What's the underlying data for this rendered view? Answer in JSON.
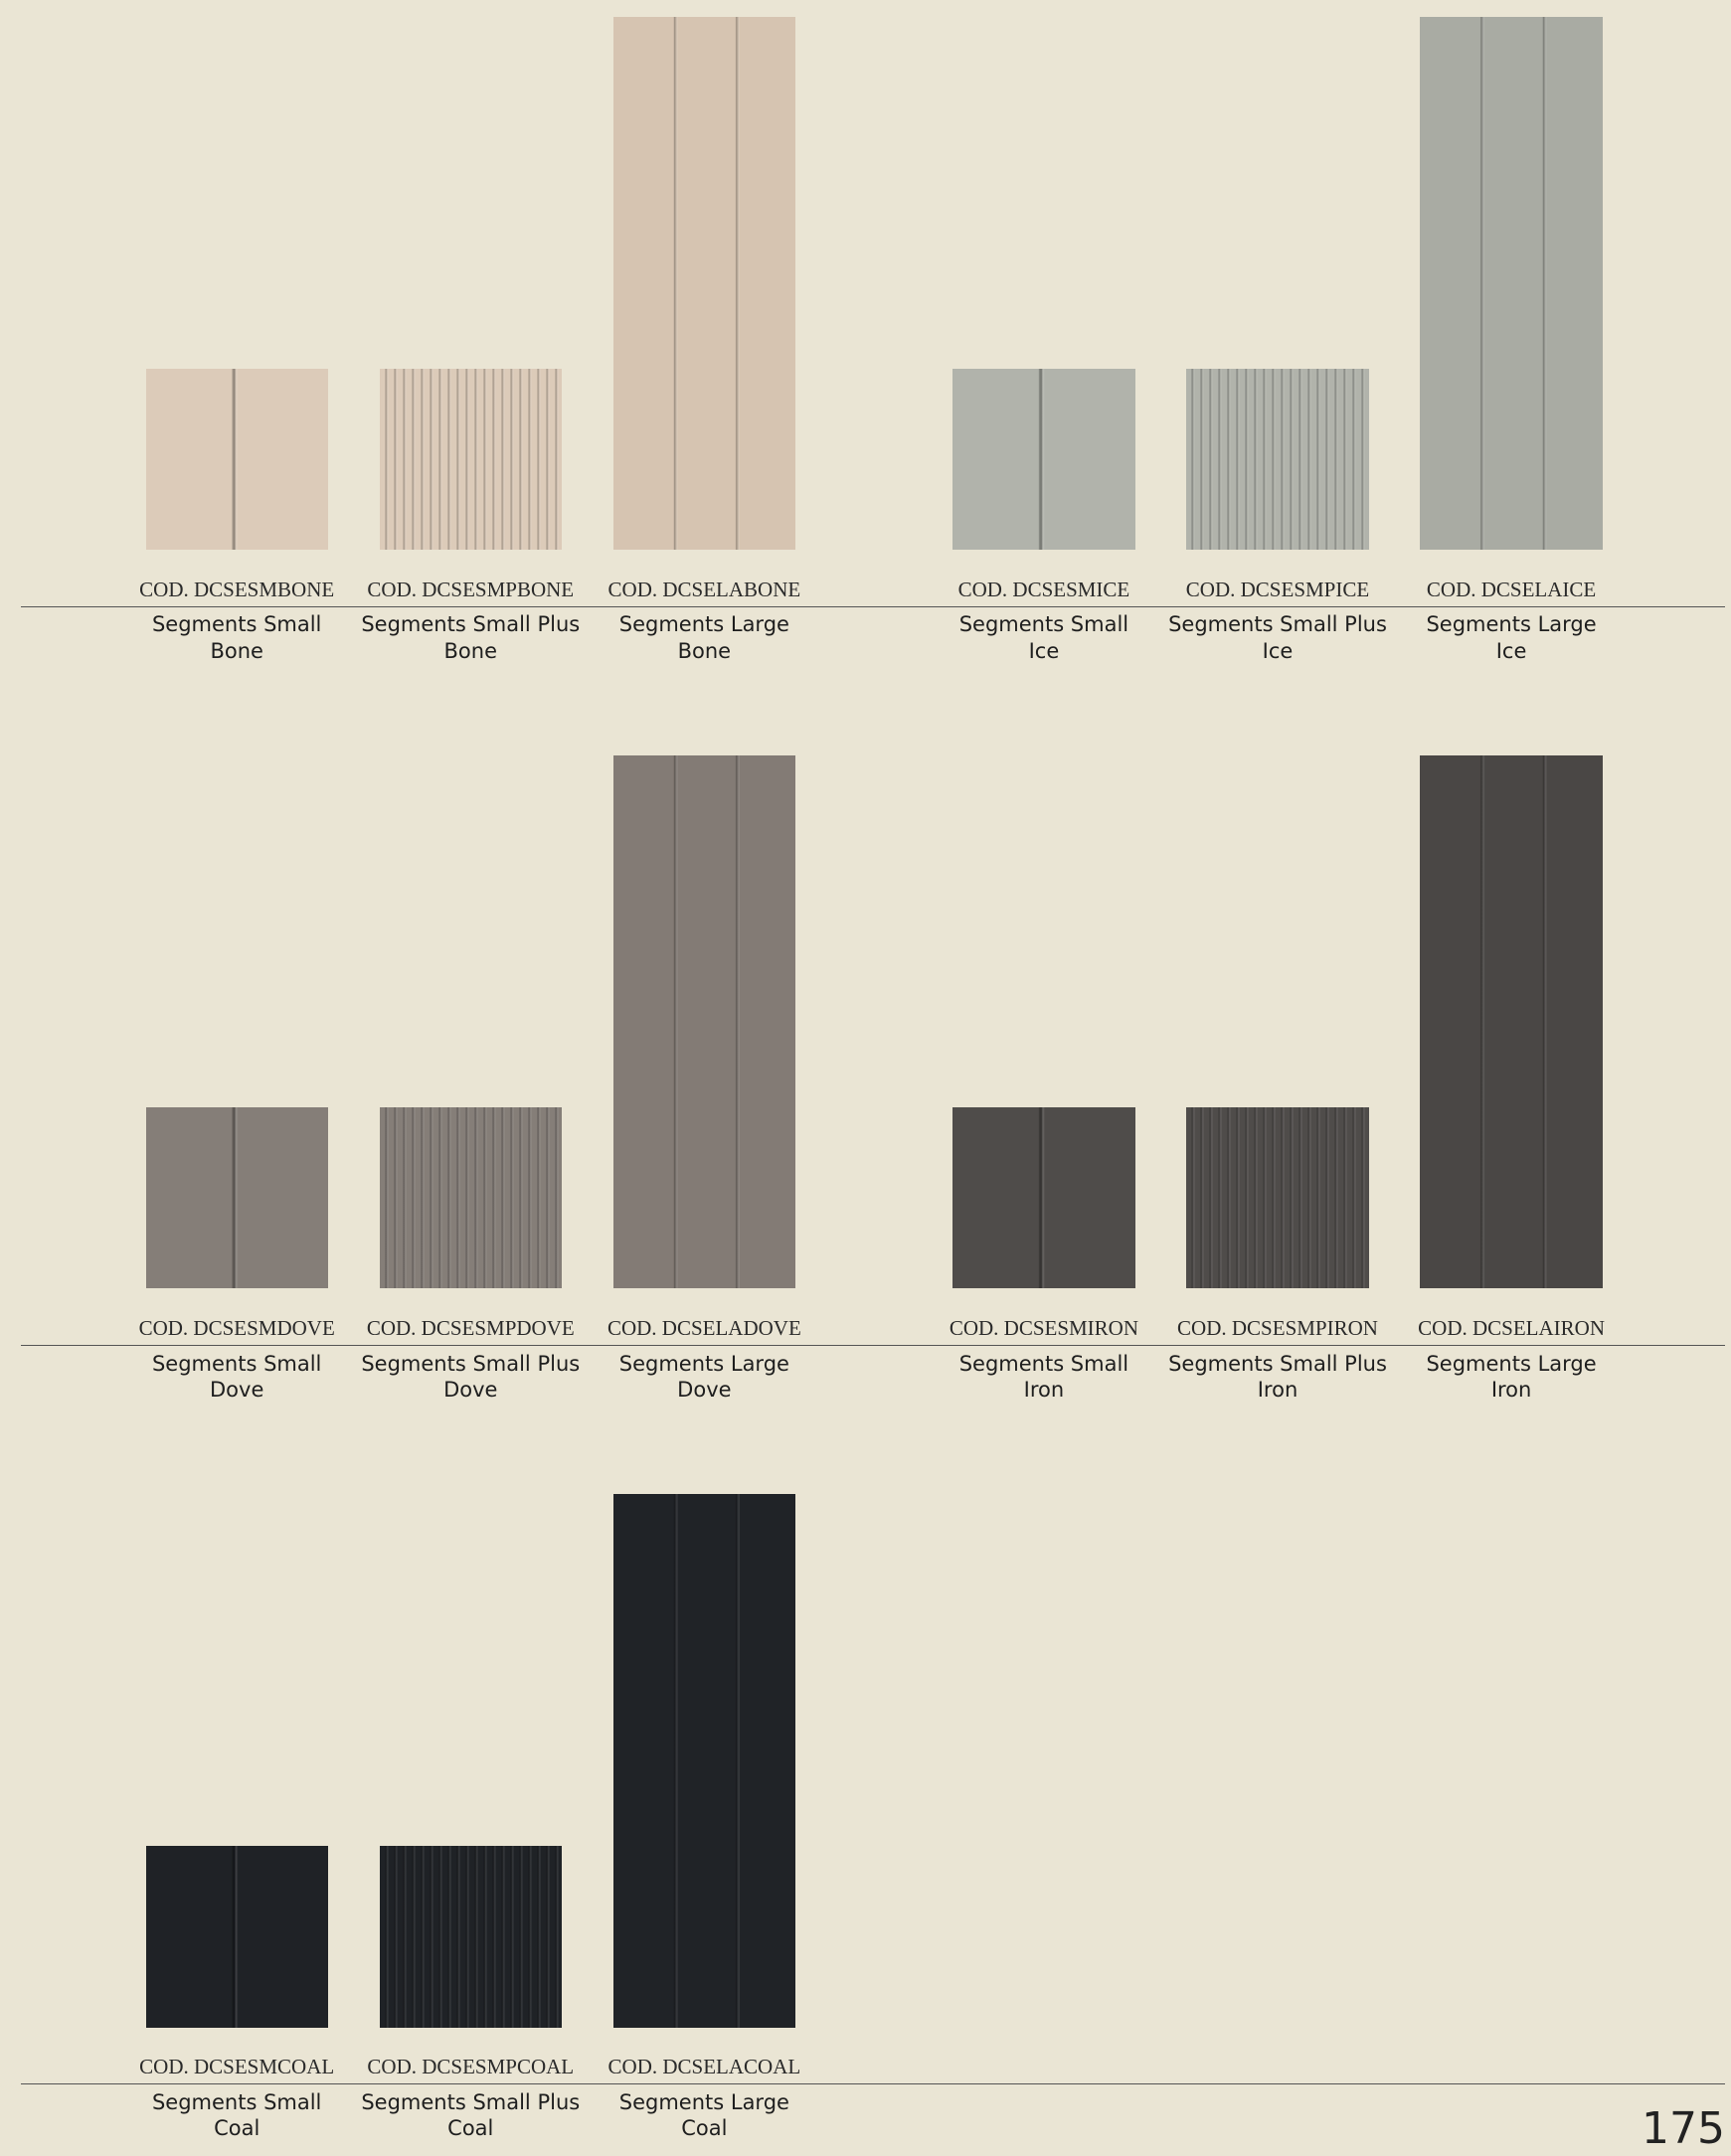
{
  "groups": [
    {
      "items": [
        {
          "code": "COD. DCSESMBONE",
          "name": "Segments Small",
          "variant": "Bone"
        },
        {
          "code": "COD. DCSESMPBONE",
          "name": "Segments Small Plus",
          "variant": "Bone"
        },
        {
          "code": "COD. DCSELABONE",
          "name": "Segments Large",
          "variant": "Bone"
        }
      ]
    },
    {
      "items": [
        {
          "code": "COD. DCSESMICE",
          "name": "Segments Small",
          "variant": "Ice"
        },
        {
          "code": "COD. DCSESMPICE",
          "name": "Segments Small Plus",
          "variant": "Ice"
        },
        {
          "code": "COD. DCSELAICE",
          "name": "Segments Large",
          "variant": "Ice"
        }
      ]
    },
    {
      "items": [
        {
          "code": "COD. DCSESMDOVE",
          "name": "Segments Small",
          "variant": "Dove"
        },
        {
          "code": "COD. DCSESMPDOVE",
          "name": "Segments Small Plus",
          "variant": "Dove"
        },
        {
          "code": "COD. DCSELADOVE",
          "name": "Segments Large",
          "variant": "Dove"
        }
      ]
    },
    {
      "items": [
        {
          "code": "COD. DCSESMIRON",
          "name": "Segments Small",
          "variant": "Iron"
        },
        {
          "code": "COD. DCSESMPIRON",
          "name": "Segments Small Plus",
          "variant": "Iron"
        },
        {
          "code": "COD. DCSELAIRON",
          "name": "Segments Large",
          "variant": "Iron"
        }
      ]
    },
    {
      "items": [
        {
          "code": "COD. DCSESMCOAL",
          "name": "Segments Small",
          "variant": "Coal"
        },
        {
          "code": "COD. DCSESMPCOAL",
          "name": "Segments Small Plus",
          "variant": "Coal"
        },
        {
          "code": "COD. DCSELACOAL",
          "name": "Segments Large",
          "variant": "Coal"
        }
      ]
    }
  ],
  "page_number": "175"
}
